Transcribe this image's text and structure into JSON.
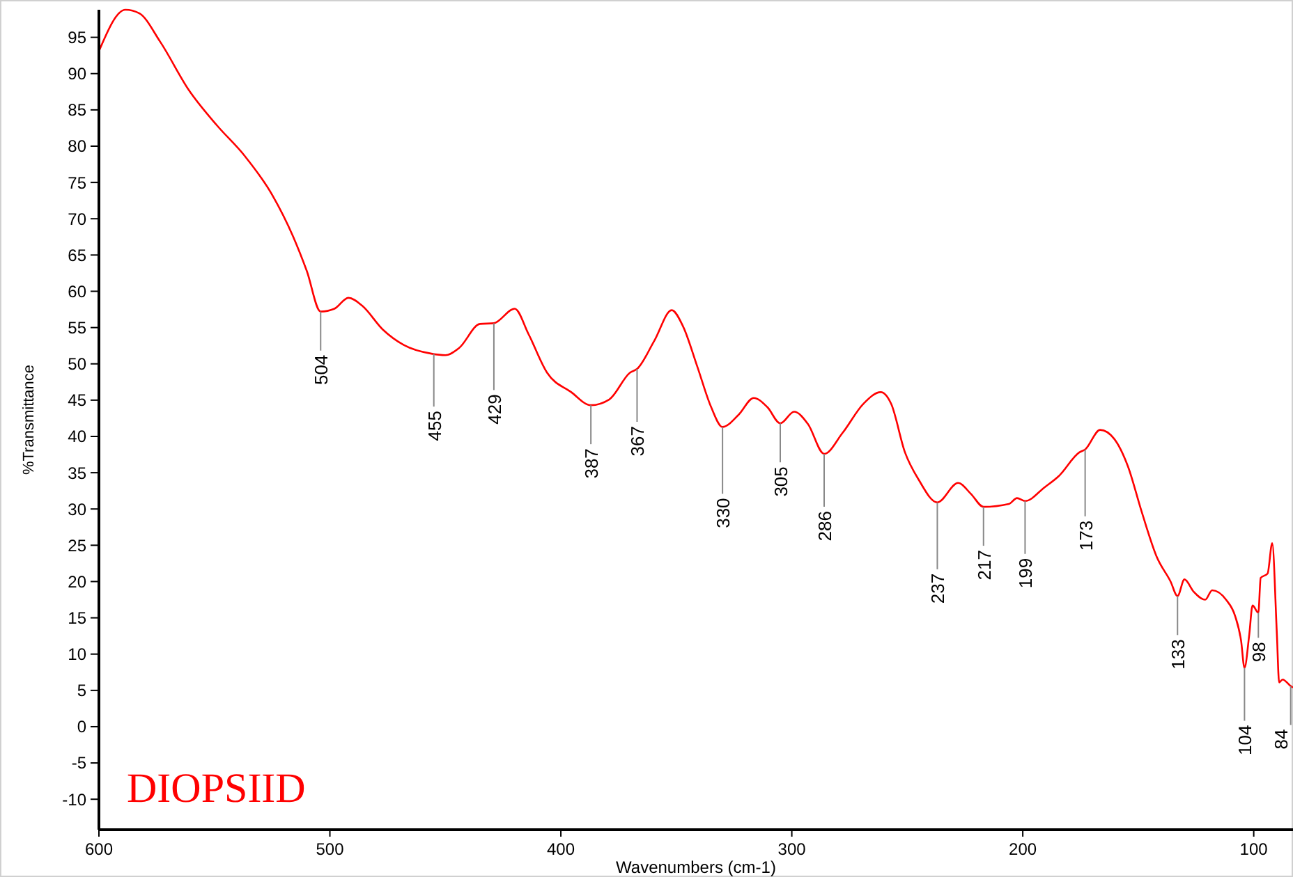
{
  "chart_data": {
    "type": "line",
    "xlabel": "Wavenumbers (cm-1)",
    "ylabel": "%Transmittance",
    "xlim": [
      600,
      83
    ],
    "ylim": [
      -14.2,
      98.8
    ],
    "xticks": [
      600,
      500,
      400,
      300,
      200,
      100
    ],
    "yticks": [
      -10,
      -5,
      0,
      5,
      10,
      15,
      20,
      25,
      30,
      35,
      40,
      45,
      50,
      55,
      60,
      65,
      70,
      75,
      80,
      85,
      90,
      95
    ],
    "grid": false,
    "series": [
      {
        "color": "#ff0000",
        "x": [
          600,
          588.5,
          582.5,
          573.5,
          561,
          549,
          537,
          525,
          516,
          510,
          504,
          498,
          492,
          486,
          477,
          468,
          456,
          450,
          444,
          435,
          429,
          420,
          414,
          406,
          395.5,
          387,
          379,
          370,
          367,
          359.5,
          352,
          347,
          341,
          335,
          330,
          323,
          316.5,
          310.5,
          305,
          299,
          293,
          286,
          278,
          269,
          261.5,
          257,
          251,
          245,
          237,
          228,
          222.5,
          217,
          206,
          202.5,
          199,
          190.5,
          184.5,
          175.5,
          173,
          166.5,
          160.5,
          154.5,
          148.5,
          142,
          136,
          133,
          130,
          126,
          121,
          118,
          112,
          108,
          105.5,
          104,
          102,
          100.5,
          98,
          97,
          94,
          92,
          90,
          89,
          87.5,
          84,
          83
        ],
        "values": [
          93.1,
          98.8,
          98.3,
          94.4,
          87.7,
          82.9,
          78.7,
          73.3,
          67.6,
          62.8,
          57.2,
          57.6,
          59.1,
          58,
          54.7,
          52.6,
          51.4,
          51.2,
          52.2,
          55.5,
          55.6,
          57.6,
          54.1,
          48.8,
          46.1,
          44.3,
          45.1,
          48.8,
          49.3,
          53.2,
          57.4,
          55.1,
          49.7,
          44.1,
          41.3,
          43,
          45.3,
          44,
          41.8,
          43.4,
          41.7,
          37.6,
          40.5,
          44.5,
          46.1,
          44.5,
          37.8,
          34,
          30.9,
          33.6,
          32.1,
          30.3,
          30.7,
          31.5,
          31.1,
          33,
          34.5,
          37.8,
          38.2,
          40.9,
          39.7,
          35.9,
          29.6,
          23.4,
          20,
          18,
          20.3,
          18.6,
          17.5,
          18.8,
          17.5,
          15.2,
          11.9,
          8.1,
          12.5,
          16.7,
          15.7,
          20.5,
          21.1,
          25.3,
          12.9,
          6.1,
          6.5,
          5.6,
          5.4
        ]
      }
    ],
    "annotations": [
      {
        "text": "504",
        "x": 504,
        "y": 57.2
      },
      {
        "text": "455",
        "x": 455,
        "y": 51.4
      },
      {
        "text": "429",
        "x": 429,
        "y": 55.6
      },
      {
        "text": "387",
        "x": 387,
        "y": 44.3
      },
      {
        "text": "367",
        "x": 367,
        "y": 49.3
      },
      {
        "text": "330",
        "x": 330,
        "y": 41.3
      },
      {
        "text": "305",
        "x": 305,
        "y": 41.8
      },
      {
        "text": "286",
        "x": 286,
        "y": 37.6
      },
      {
        "text": "237",
        "x": 237,
        "y": 30.9
      },
      {
        "text": "217",
        "x": 217,
        "y": 30.3
      },
      {
        "text": "199",
        "x": 199,
        "y": 31.1
      },
      {
        "text": "173",
        "x": 173,
        "y": 38.2
      },
      {
        "text": "133",
        "x": 133,
        "y": 18
      },
      {
        "text": "104",
        "x": 104,
        "y": 8.1
      },
      {
        "text": "98",
        "x": 98,
        "y": 15.7
      },
      {
        "text": "84",
        "x": 84,
        "y": 5.6
      },
      "DIOPSIID"
    ]
  }
}
